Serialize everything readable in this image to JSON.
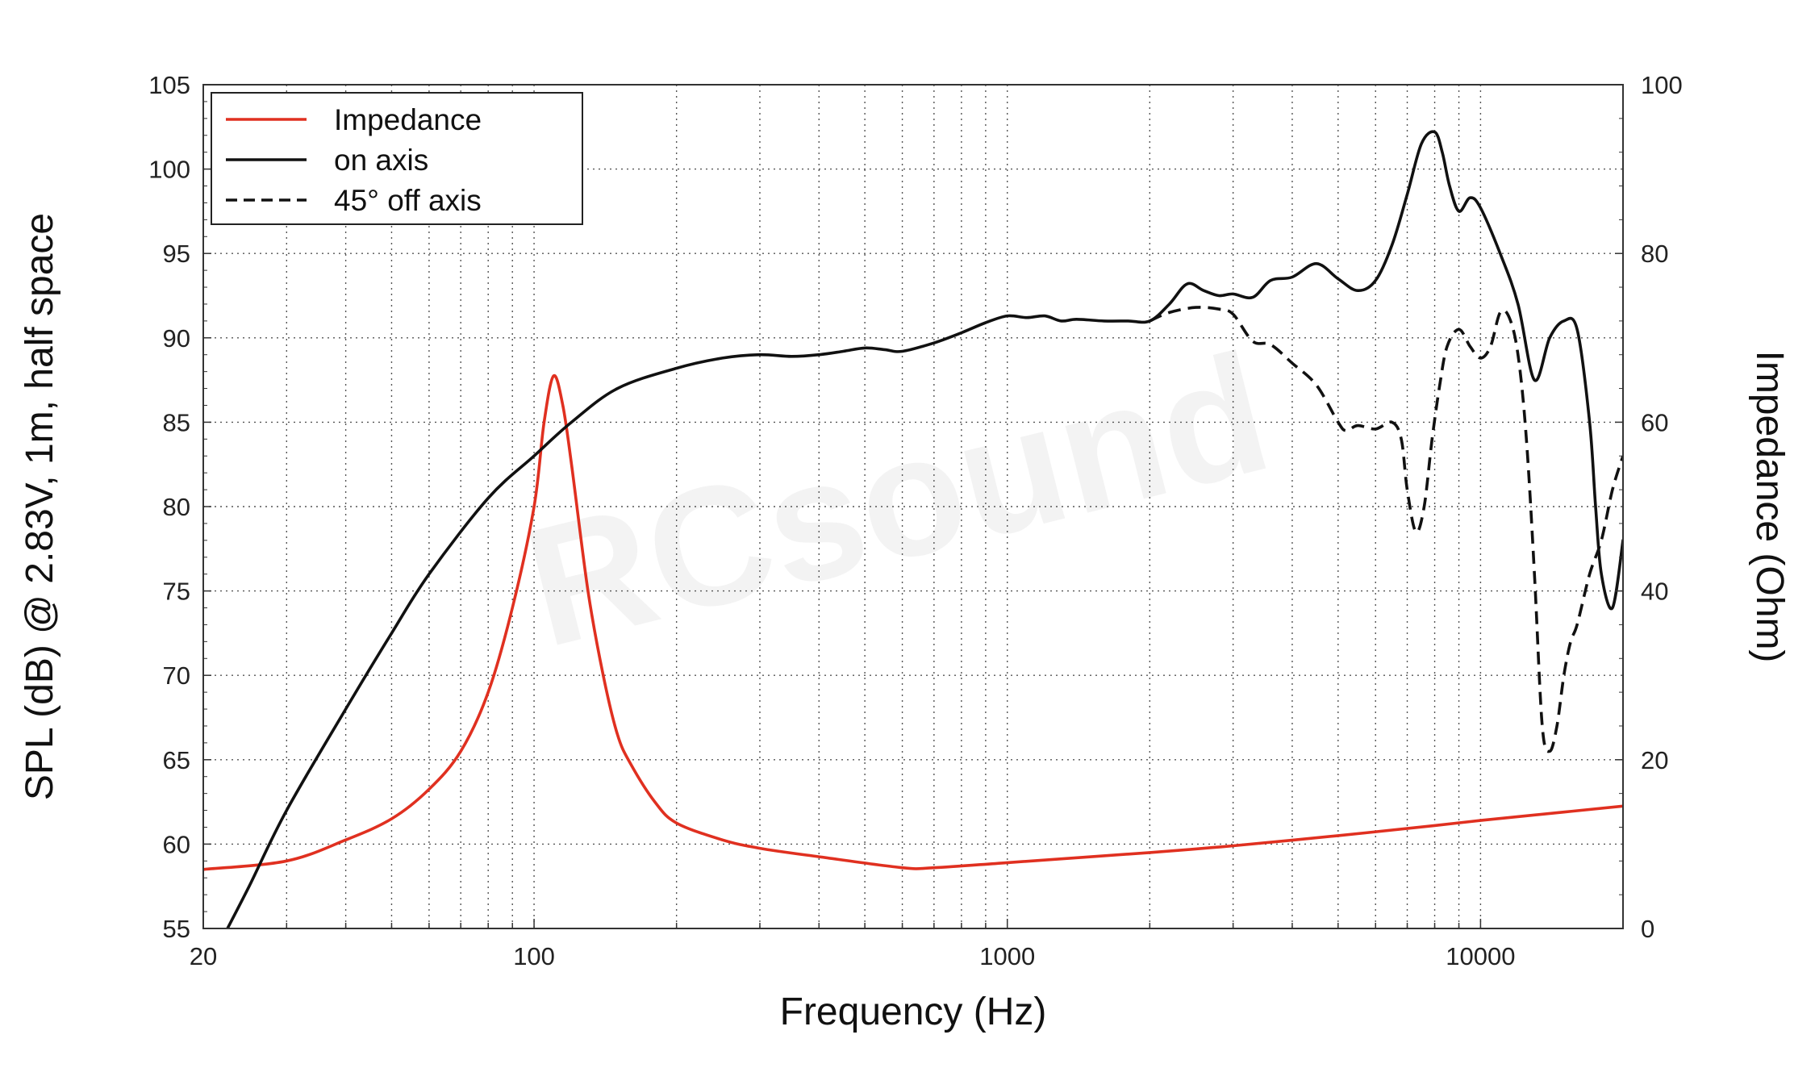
{
  "chart_data": {
    "type": "line",
    "xlabel": "Frequency (Hz)",
    "ylabel_left": "SPL (dB) @ 2.83V, 1m, half space",
    "ylabel_right": "Impedance (Ohm)",
    "x_scale": "log",
    "xlim": [
      20,
      20000
    ],
    "x_tick_labels": [
      "20",
      "100",
      "1000",
      "10000"
    ],
    "x_ticks": [
      20,
      100,
      1000,
      10000
    ],
    "ylim_left": [
      55,
      105
    ],
    "y_ticks_left": [
      55,
      60,
      65,
      70,
      75,
      80,
      85,
      90,
      95,
      100,
      105
    ],
    "ylim_right": [
      0,
      100
    ],
    "y_ticks_right": [
      0,
      20,
      40,
      60,
      80,
      100
    ],
    "grid": true,
    "legend_position": "top-left",
    "watermark": "RCsound",
    "series": [
      {
        "name": "Impedance",
        "axis": "right",
        "color": "#e03020",
        "style": "solid",
        "x": [
          20,
          30,
          40,
          50,
          60,
          70,
          80,
          90,
          100,
          105,
          110,
          115,
          120,
          130,
          140,
          150,
          160,
          180,
          200,
          250,
          300,
          400,
          600,
          700,
          1000,
          2000,
          3000,
          5000,
          8000,
          10000,
          15000,
          20000
        ],
        "y": [
          7,
          8,
          10.5,
          13,
          16.5,
          21,
          28,
          38,
          50,
          60,
          65.5,
          62,
          55,
          40,
          30,
          23,
          19.5,
          15,
          12.5,
          10.5,
          9.5,
          8.5,
          7.2,
          7.2,
          7.8,
          9,
          9.8,
          11,
          12.2,
          12.8,
          13.8,
          14.5
        ]
      },
      {
        "name": "on axis",
        "axis": "left",
        "color": "#111111",
        "style": "solid",
        "x": [
          22.5,
          25,
          30,
          40,
          50,
          60,
          80,
          100,
          120,
          150,
          200,
          250,
          300,
          350,
          400,
          450,
          500,
          550,
          600,
          700,
          800,
          900,
          1000,
          1100,
          1200,
          1300,
          1400,
          1600,
          1800,
          2000,
          2200,
          2400,
          2600,
          2800,
          3000,
          3300,
          3600,
          4000,
          4500,
          5000,
          5500,
          6000,
          6500,
          7000,
          7500,
          8000,
          8300,
          8600,
          9000,
          9500,
          10000,
          11000,
          12000,
          13000,
          14000,
          15000,
          16000,
          17000,
          17500,
          18000,
          19000,
          20000
        ],
        "y": [
          55,
          57.5,
          62,
          68,
          72.5,
          76,
          80.5,
          83,
          85,
          87,
          88.2,
          88.8,
          89,
          88.9,
          89.0,
          89.2,
          89.4,
          89.3,
          89.2,
          89.7,
          90.3,
          90.9,
          91.3,
          91.2,
          91.3,
          91.0,
          91.1,
          91.0,
          91.0,
          91.0,
          92.0,
          93.2,
          92.8,
          92.5,
          92.6,
          92.4,
          93.4,
          93.6,
          94.4,
          93.5,
          92.8,
          93.4,
          95.5,
          98.5,
          101.5,
          102.2,
          101,
          99,
          97.5,
          98.3,
          97.7,
          95,
          92,
          87.5,
          90,
          91,
          90.5,
          85,
          80,
          76,
          74,
          78
        ]
      },
      {
        "name": "45° off axis",
        "axis": "left",
        "color": "#111111",
        "style": "dashed",
        "x": [
          2000,
          2200,
          2500,
          2800,
          3000,
          3300,
          3600,
          4000,
          4500,
          5000,
          5200,
          5500,
          6000,
          6500,
          6800,
          7000,
          7300,
          7600,
          7900,
          8200,
          8500,
          9000,
          9500,
          10000,
          10500,
          11000,
          11500,
          12000,
          12500,
          13000,
          13500,
          14000,
          14500,
          15000,
          15500,
          16000,
          17000,
          18000,
          19000,
          20000
        ],
        "y": [
          91.0,
          91.5,
          91.8,
          91.7,
          91.4,
          89.8,
          89.6,
          88.5,
          87.2,
          85,
          84.5,
          84.8,
          84.6,
          85,
          84,
          81,
          78.5,
          80,
          84,
          87.2,
          89.5,
          90.5,
          89.5,
          88.8,
          89.5,
          91.5,
          91.2,
          89,
          84,
          76,
          67,
          65.5,
          67,
          70,
          72,
          73,
          76,
          78,
          81,
          83
        ]
      }
    ]
  }
}
